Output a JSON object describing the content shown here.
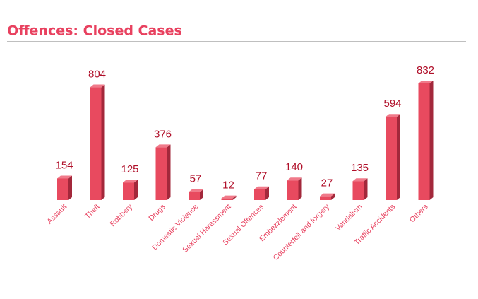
{
  "chart_data": {
    "type": "bar",
    "title": "Offences: Closed Cases",
    "categories": [
      "Assault",
      "Theft",
      "Robbery",
      "Drugs",
      "Domestic Violence",
      "Sexual Harassment",
      "Sexual Offences",
      "Embezzlement",
      "Counterfeit and forgery",
      "Vandalism",
      "Traffic Accidents",
      "Others"
    ],
    "values": [
      154,
      804,
      125,
      376,
      57,
      12,
      77,
      140,
      27,
      135,
      594,
      832
    ],
    "color": "#e84a5f"
  }
}
